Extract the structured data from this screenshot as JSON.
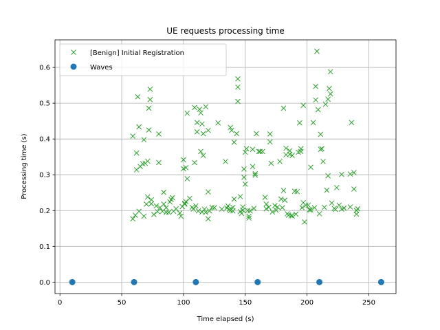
{
  "chart_data": {
    "type": "scatter",
    "title": "UE requests processing time",
    "xlabel": "Time elapsed (s)",
    "ylabel": "Processing time (s)",
    "xlim": [
      -4,
      272
    ],
    "ylim": [
      -0.032,
      0.677
    ],
    "xticks": [
      0,
      50,
      100,
      150,
      200,
      250
    ],
    "yticks": [
      0.0,
      0.1,
      0.2,
      0.3,
      0.4,
      0.5,
      0.6
    ],
    "grid": true,
    "legend_position": "top-left",
    "series": [
      {
        "name": "[Benign] Initial Registration",
        "marker": "x",
        "color": "#2ca02c",
        "points": [
          [
            59,
            0.408
          ],
          [
            59,
            0.177
          ],
          [
            61,
            0.187
          ],
          [
            62,
            0.361
          ],
          [
            62,
            0.314
          ],
          [
            63,
            0.518
          ],
          [
            64,
            0.434
          ],
          [
            64,
            0.198
          ],
          [
            65,
            0.323
          ],
          [
            67,
            0.331
          ],
          [
            68,
            0.398
          ],
          [
            68,
            0.184
          ],
          [
            69,
            0.332
          ],
          [
            70,
            0.218
          ],
          [
            71,
            0.338
          ],
          [
            71,
            0.238
          ],
          [
            72,
            0.425
          ],
          [
            72,
            0.486
          ],
          [
            73,
            0.539
          ],
          [
            73,
            0.51
          ],
          [
            74,
            0.219
          ],
          [
            74,
            0.23
          ],
          [
            76,
            0.189
          ],
          [
            78,
            0.213
          ],
          [
            79,
            0.197
          ],
          [
            80,
            0.414
          ],
          [
            80,
            0.334
          ],
          [
            81,
            0.208
          ],
          [
            83,
            0.198
          ],
          [
            84,
            0.251
          ],
          [
            84,
            0.218
          ],
          [
            86,
            0.195
          ],
          [
            86,
            0.208
          ],
          [
            88,
            0.195
          ],
          [
            89,
            0.224
          ],
          [
            90,
            0.231
          ],
          [
            91,
            0.236
          ],
          [
            92,
            0.198
          ],
          [
            94,
            0.205
          ],
          [
            97,
            0.193
          ],
          [
            98,
            0.184
          ],
          [
            99,
            0.211
          ],
          [
            100,
            0.342
          ],
          [
            100,
            0.317
          ],
          [
            101,
            0.22
          ],
          [
            101,
            0.218
          ],
          [
            102,
            0.32
          ],
          [
            102,
            0.225
          ],
          [
            103,
            0.289
          ],
          [
            103,
            0.472
          ],
          [
            105,
            0.234
          ],
          [
            107,
            0.209
          ],
          [
            108,
            0.204
          ],
          [
            109,
            0.334
          ],
          [
            109,
            0.488
          ],
          [
            110,
            0.213
          ],
          [
            111,
            0.446
          ],
          [
            111,
            0.42
          ],
          [
            112,
            0.199
          ],
          [
            113,
            0.483
          ],
          [
            114,
            0.473
          ],
          [
            114,
            0.365
          ],
          [
            115,
            0.442
          ],
          [
            115,
            0.196
          ],
          [
            116,
            0.354
          ],
          [
            116,
            0.415
          ],
          [
            117,
            0.204
          ],
          [
            118,
            0.195
          ],
          [
            118,
            0.49
          ],
          [
            120,
            0.177
          ],
          [
            120,
            0.252
          ],
          [
            120,
            0.424
          ],
          [
            121,
            0.199
          ],
          [
            123,
            0.209
          ],
          [
            125,
            0.208
          ],
          [
            128,
            0.445
          ],
          [
            131,
            0.204
          ],
          [
            134,
            0.337
          ],
          [
            135,
            0.207
          ],
          [
            136,
            0.213
          ],
          [
            137,
            0.203
          ],
          [
            138,
            0.432
          ],
          [
            138,
            0.2
          ],
          [
            139,
            0.424
          ],
          [
            140,
            0.209
          ],
          [
            140,
            0.199
          ],
          [
            141,
            0.391
          ],
          [
            141,
            0.232
          ],
          [
            143,
            0.415
          ],
          [
            144,
            0.505
          ],
          [
            144,
            0.545
          ],
          [
            144,
            0.568
          ],
          [
            146,
            0.197
          ],
          [
            146,
            0.239
          ],
          [
            147,
            0.192
          ],
          [
            148,
            0.21
          ],
          [
            148,
            0.201
          ],
          [
            149,
            0.316
          ],
          [
            149,
            0.293
          ],
          [
            150,
            0.363
          ],
          [
            150,
            0.274
          ],
          [
            151,
            0.373
          ],
          [
            152,
            0.2
          ],
          [
            153,
            0.184
          ],
          [
            153,
            0.179
          ],
          [
            154,
            0.199
          ],
          [
            156,
            0.323
          ],
          [
            156,
            0.371
          ],
          [
            157,
            0.206
          ],
          [
            158,
            0.303
          ],
          [
            158,
            0.299
          ],
          [
            159,
            0.415
          ],
          [
            161,
            0.365
          ],
          [
            162,
            0.365
          ],
          [
            164,
            0.365
          ],
          [
            166,
            0.237
          ],
          [
            167,
            0.218
          ],
          [
            167,
            0.205
          ],
          [
            169,
            0.209
          ],
          [
            170,
            0.392
          ],
          [
            170,
            0.414
          ],
          [
            171,
            0.332
          ],
          [
            172,
            0.196
          ],
          [
            174,
            0.214
          ],
          [
            175,
            0.201
          ],
          [
            176,
            0.21
          ],
          [
            178,
            0.337
          ],
          [
            179,
            0.232
          ],
          [
            180,
            0.208
          ],
          [
            181,
            0.486
          ],
          [
            181,
            0.256
          ],
          [
            182,
            0.229
          ],
          [
            183,
            0.356
          ],
          [
            183,
            0.374
          ],
          [
            184,
            0.191
          ],
          [
            185,
            0.187
          ],
          [
            186,
            0.367
          ],
          [
            186,
            0.357
          ],
          [
            187,
            0.186
          ],
          [
            188,
            0.354
          ],
          [
            188,
            0.185
          ],
          [
            190,
            0.254
          ],
          [
            191,
            0.19
          ],
          [
            192,
            0.253
          ],
          [
            193,
            0.363
          ],
          [
            194,
            0.445
          ],
          [
            195,
            0.365
          ],
          [
            195,
            0.373
          ],
          [
            196,
            0.208
          ],
          [
            197,
            0.222
          ],
          [
            197,
            0.494
          ],
          [
            198,
            0.168
          ],
          [
            199,
            0.215
          ],
          [
            201,
            0.215
          ],
          [
            202,
            0.202
          ],
          [
            203,
            0.202
          ],
          [
            203,
            0.321
          ],
          [
            205,
            0.446
          ],
          [
            206,
            0.208
          ],
          [
            207,
            0.509
          ],
          [
            207,
            0.547
          ],
          [
            208,
            0.645
          ],
          [
            209,
            0.482
          ],
          [
            210,
            0.191
          ],
          [
            211,
            0.413
          ],
          [
            211,
            0.371
          ],
          [
            212,
            0.373
          ],
          [
            213,
            0.337
          ],
          [
            214,
            0.209
          ],
          [
            215,
            0.497
          ],
          [
            216,
            0.257
          ],
          [
            217,
            0.297
          ],
          [
            217,
            0.511
          ],
          [
            218,
            0.541
          ],
          [
            219,
            0.526
          ],
          [
            219,
            0.588
          ],
          [
            220,
            0.221
          ],
          [
            222,
            0.206
          ],
          [
            223,
            0.203
          ],
          [
            224,
            0.264
          ],
          [
            226,
            0.215
          ],
          [
            228,
            0.204
          ],
          [
            228,
            0.301
          ],
          [
            230,
            0.207
          ],
          [
            235,
            0.21
          ],
          [
            235,
            0.302
          ],
          [
            236,
            0.446
          ],
          [
            238,
            0.26
          ],
          [
            238,
            0.306
          ],
          [
            240,
            0.19
          ],
          [
            240,
            0.2
          ],
          [
            241,
            0.205
          ]
        ]
      },
      {
        "name": "Waves",
        "marker": "circle",
        "color": "#1f77b4",
        "points": [
          [
            10,
            0.0
          ],
          [
            60,
            0.0
          ],
          [
            110,
            0.0
          ],
          [
            160,
            0.0
          ],
          [
            210,
            0.0
          ],
          [
            260,
            0.0
          ]
        ]
      }
    ]
  }
}
